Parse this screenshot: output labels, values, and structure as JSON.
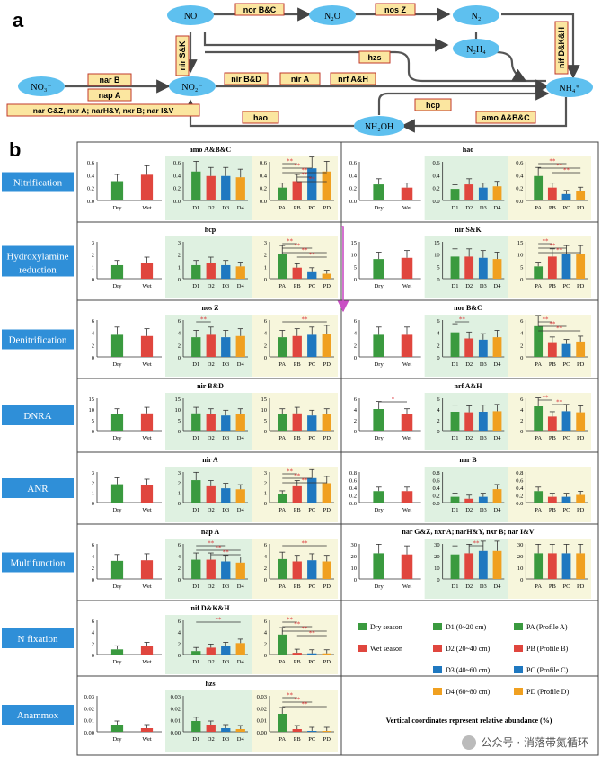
{
  "panel_a": {
    "label": "a",
    "nodes": {
      "no": "NO",
      "n2o": "N₂O",
      "n2": "N₂",
      "n2h4": "N₂H₄",
      "no3": "NO₃⁻",
      "no2": "NO₂⁻",
      "nh4": "NH₄⁺",
      "nh2oh": "NH₂OH"
    },
    "genes": {
      "nor": "nor B&C",
      "nos": "nos Z",
      "nirsk": "nir S&K",
      "hzs": "hzs",
      "nif": "nif D&K&H",
      "narb": "nar B",
      "napa": "nap A",
      "multi": "nar G&Z, nxr A; narH&Y, nxr B; nar I&V",
      "nirbd": "nir B&D",
      "nira": "nir A",
      "nrf": "nrf A&H",
      "hcp": "hcp",
      "hao": "hao",
      "amo": "amo A&B&C"
    }
  },
  "panel_b": {
    "label": "b",
    "categories": [
      "Nitrification",
      "Hydroxylamine reduction",
      "Denitrification",
      "DNRA",
      "ANR",
      "Multifunction",
      "N fixation",
      "Anammox"
    ],
    "legend": {
      "dry": "Dry season",
      "wet": "Wet season",
      "d1": "D1 (0~20 cm)",
      "d2": "D2 (20~40 cm)",
      "d3": "D3 (40~60 cm)",
      "d4": "D4 (60~80 cm)",
      "pa": "PA (Profile A)",
      "pb": "PB (Profile B)",
      "pc": "PC (Profile C)",
      "pd": "PD (Profile D)",
      "note": "Vertical coordinates represent relative abundance (%)"
    },
    "colors": {
      "green": "#3a9a3f",
      "red": "#e0463e",
      "blue": "#1f78c0",
      "orange": "#f0a020",
      "bgGreen": "#dff1e1",
      "bgYellow": "#f7f6dc",
      "catFill": "#2f8fd8",
      "sig": "#d9252b"
    },
    "axis_labels": {
      "season": [
        "Dry",
        "Wet"
      ],
      "depth": [
        "D1",
        "D2",
        "D3",
        "D4"
      ],
      "profile": [
        "PA",
        "PB",
        "PC",
        "PD"
      ]
    }
  },
  "watermark": "公众号 · 消落带氮循环",
  "chart_data": [
    {
      "type": "bar",
      "title": "amo A&B&C",
      "col": 0,
      "row": 0,
      "ylim": [
        0,
        0.6
      ],
      "ticks": [
        "0.6",
        "0.4",
        "0.2",
        "0.0"
      ],
      "season": [
        0.3,
        0.4
      ],
      "depth": [
        0.45,
        0.38,
        0.38,
        0.36
      ],
      "profile": [
        0.2,
        0.3,
        0.5,
        0.45
      ],
      "sig_profile": [
        [
          0,
          1
        ],
        [
          0,
          2
        ],
        [
          0,
          3
        ],
        [
          1,
          2
        ],
        [
          1,
          3
        ]
      ]
    },
    {
      "type": "bar",
      "title": "hao",
      "col": 1,
      "row": 0,
      "ylim": [
        0,
        0.6
      ],
      "ticks": [
        "0.6",
        "0.4",
        "0.2",
        "0.0"
      ],
      "season": [
        0.25,
        0.2
      ],
      "depth": [
        0.18,
        0.25,
        0.2,
        0.22
      ],
      "profile": [
        0.38,
        0.2,
        0.1,
        0.15
      ],
      "sig_profile": [
        [
          0,
          2
        ],
        [
          0,
          3
        ],
        [
          1,
          3
        ]
      ]
    },
    {
      "type": "bar",
      "title": "hcp",
      "col": 0,
      "row": 1,
      "ylim": [
        0,
        3
      ],
      "ticks": [
        "3",
        "2",
        "1",
        "0"
      ],
      "season": [
        1.1,
        1.3
      ],
      "depth": [
        1.1,
        1.3,
        1.1,
        1.0
      ],
      "profile": [
        2.0,
        0.9,
        0.6,
        0.4
      ],
      "sig_profile": [
        [
          0,
          1
        ],
        [
          0,
          2
        ],
        [
          0,
          3
        ],
        [
          1,
          3
        ]
      ]
    },
    {
      "type": "bar",
      "title": "nir S&K",
      "col": 1,
      "row": 1,
      "ylim": [
        0,
        15
      ],
      "ticks": [
        "15",
        "10",
        "5",
        "0"
      ],
      "season": [
        8,
        8.5
      ],
      "depth": [
        9,
        9,
        8.5,
        8
      ],
      "profile": [
        5,
        9,
        10,
        10
      ],
      "sig_profile": [
        [
          0,
          1
        ],
        [
          0,
          2
        ],
        [
          0,
          3
        ]
      ]
    },
    {
      "type": "bar",
      "title": "nos Z",
      "col": 0,
      "row": 2,
      "ylim": [
        0,
        6
      ],
      "ticks": [
        "6",
        "4",
        "2",
        "0"
      ],
      "season": [
        3.6,
        3.4
      ],
      "depth": [
        3.2,
        3.6,
        3.2,
        3.4
      ],
      "profile": [
        3.2,
        3.4,
        3.6,
        3.8
      ],
      "sig_depth": [
        [
          0,
          1
        ]
      ],
      "sig_profile": [
        [
          0,
          3
        ]
      ]
    },
    {
      "type": "bar",
      "title": "nor B&C",
      "col": 1,
      "row": 2,
      "ylim": [
        0,
        6
      ],
      "ticks": [
        "6",
        "4",
        "2",
        "0"
      ],
      "season": [
        3.6,
        3.6
      ],
      "depth": [
        4,
        3,
        2.8,
        3.2
      ],
      "profile": [
        5,
        2.4,
        2.1,
        2.5
      ],
      "sig_depth": [
        [
          0,
          1
        ]
      ],
      "sig_profile": [
        [
          0,
          1
        ],
        [
          0,
          2
        ],
        [
          0,
          3
        ]
      ]
    },
    {
      "type": "bar",
      "title": "nir B&D",
      "col": 0,
      "row": 3,
      "ylim": [
        0,
        15
      ],
      "ticks": [
        "15",
        "10",
        "5",
        "0"
      ],
      "season": [
        7.5,
        8
      ],
      "depth": [
        8,
        7.5,
        7,
        7.5
      ],
      "profile": [
        7.5,
        8,
        7,
        7.5
      ]
    },
    {
      "type": "bar",
      "title": "nrf A&H",
      "col": 1,
      "row": 3,
      "ylim": [
        0,
        6
      ],
      "ticks": [
        "6",
        "4",
        "2",
        "0"
      ],
      "season": [
        4,
        3
      ],
      "depth": [
        3.5,
        3.4,
        3.5,
        3.6
      ],
      "profile": [
        4.5,
        2.6,
        3.6,
        3.4
      ],
      "sig_season": true,
      "sig_profile": [
        [
          0,
          1
        ],
        [
          1,
          2
        ]
      ]
    },
    {
      "type": "bar",
      "title": "nir A",
      "col": 0,
      "row": 4,
      "ylim": [
        0,
        3
      ],
      "ticks": [
        "3",
        "2",
        "1",
        "0"
      ],
      "season": [
        1.8,
        1.7
      ],
      "depth": [
        2.2,
        1.6,
        1.4,
        1.3
      ],
      "profile": [
        0.8,
        1.6,
        2.4,
        1.9
      ],
      "sig_profile": [
        [
          0,
          1
        ],
        [
          0,
          2
        ],
        [
          0,
          3
        ]
      ]
    },
    {
      "type": "bar",
      "title": "nar B",
      "col": 1,
      "row": 4,
      "ylim": [
        0,
        0.8
      ],
      "ticks": [
        "0.8",
        "0.6",
        "0.4",
        "0.2",
        "0.0"
      ],
      "season": [
        0.3,
        0.3
      ],
      "depth": [
        0.15,
        0.1,
        0.15,
        0.35
      ],
      "profile": [
        0.3,
        0.15,
        0.15,
        0.2
      ]
    },
    {
      "type": "bar",
      "title": "nap A",
      "col": 0,
      "row": 5,
      "ylim": [
        0,
        6
      ],
      "ticks": [
        "6",
        "4",
        "2",
        "0"
      ],
      "season": [
        3.1,
        3.2
      ],
      "depth": [
        3.3,
        3.3,
        3.0,
        2.8
      ],
      "profile": [
        3.4,
        3.0,
        3.2,
        3.0
      ],
      "sig_depth": [
        [
          0,
          2
        ],
        [
          0,
          3
        ],
        [
          1,
          3
        ]
      ],
      "sig_profile": [
        [
          0,
          3
        ]
      ]
    },
    {
      "type": "bar",
      "title": "nar G&Z, nxr A; narH&Y, nxr B; nar I&V",
      "col": 1,
      "row": 5,
      "ylim": [
        0,
        30
      ],
      "ticks": [
        "30",
        "20",
        "10",
        "0"
      ],
      "season": [
        22,
        21
      ],
      "depth": [
        21,
        22,
        24,
        24
      ],
      "profile": [
        22,
        22,
        22,
        22
      ],
      "sig_depth": [
        [
          1,
          2
        ]
      ]
    },
    {
      "type": "bar",
      "title": "nif D&K&H",
      "col": 0,
      "row": 6,
      "ylim": [
        0,
        6
      ],
      "ticks": [
        "6",
        "4",
        "2",
        "0"
      ],
      "season": [
        0.9,
        1.5
      ],
      "depth": [
        0.6,
        1.2,
        1.5,
        2.0
      ],
      "profile": [
        3.5,
        0.3,
        0.2,
        0.2
      ],
      "sig_depth": [
        [
          0,
          3
        ]
      ],
      "sig_profile": [
        [
          0,
          1
        ],
        [
          0,
          2
        ],
        [
          0,
          3
        ],
        [
          1,
          3
        ]
      ]
    },
    {
      "type": "bar",
      "title": "hzs",
      "col": 0,
      "row": 7,
      "ylim": [
        0,
        0.04
      ],
      "ticks": [
        "0.03",
        "0.02",
        "0.01",
        "0.00"
      ],
      "season": [
        0.008,
        0.004
      ],
      "depth": [
        0.012,
        0.008,
        0.004,
        0.003
      ],
      "profile": [
        0.02,
        0.003,
        0.001,
        0.001
      ],
      "sig_profile": [
        [
          0,
          1
        ],
        [
          0,
          2
        ],
        [
          0,
          3
        ]
      ]
    }
  ]
}
